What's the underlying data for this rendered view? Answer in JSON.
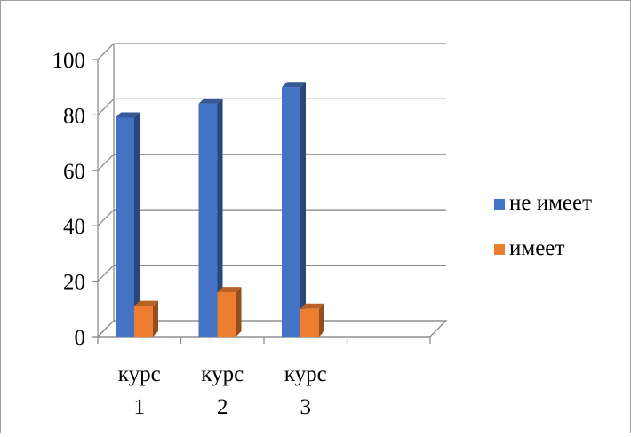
{
  "chart_data": {
    "type": "bar",
    "title": "",
    "xlabel": "",
    "ylabel": "",
    "categories": [
      [
        "курс",
        "1"
      ],
      [
        "курс",
        "2"
      ],
      [
        "курс",
        "3"
      ],
      [
        "",
        ""
      ]
    ],
    "series": [
      {
        "name": "не имеет",
        "values": [
          79,
          84,
          90,
          null
        ],
        "color": "#4472c4"
      },
      {
        "name": "имеет",
        "values": [
          11,
          16,
          10,
          null
        ],
        "color": "#ed7d31"
      }
    ],
    "ylim": [
      0,
      100
    ],
    "yticks": [
      0,
      20,
      40,
      60,
      80,
      100
    ],
    "grid": true,
    "legend_position": "right",
    "style": "3d-clustered-column"
  }
}
